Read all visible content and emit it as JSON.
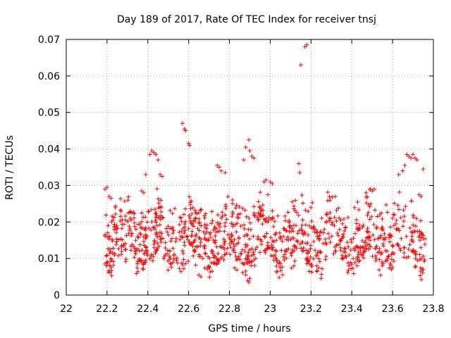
{
  "chart_data": {
    "type": "scatter",
    "title": "Day 189 of 2017, Rate Of TEC Index for receiver tnsj",
    "xlabel": "GPS time / hours",
    "ylabel": "ROTI / TECUs",
    "xlim": [
      22,
      23.8
    ],
    "ylim": [
      0,
      0.07
    ],
    "xticks": [
      22,
      22.2,
      22.4,
      22.6,
      22.8,
      23,
      23.2,
      23.4,
      23.6,
      23.8
    ],
    "xtick_labels": [
      "22",
      "22.2",
      "22.4",
      "22.6",
      "22.8",
      "23",
      "23.2",
      "23.4",
      "23.6",
      "23.8"
    ],
    "yticks": [
      0,
      0.01,
      0.02,
      0.03,
      0.04,
      0.05,
      0.06,
      0.07
    ],
    "ytick_labels": [
      "0",
      "0.01",
      "0.02",
      "0.03",
      "0.04",
      "0.05",
      "0.06",
      "0.07"
    ],
    "grid": true,
    "marker": "plus",
    "color": "#ff0000",
    "series": [
      {
        "name": "ROTI",
        "x_range": [
          22.19,
          23.76
        ],
        "points": [
          [
            22.19,
            0.029
          ],
          [
            22.2,
            0.0295
          ],
          [
            22.21,
            0.027
          ],
          [
            22.22,
            0.0265
          ],
          [
            22.57,
            0.047
          ],
          [
            22.58,
            0.0455
          ],
          [
            22.585,
            0.045
          ],
          [
            22.6,
            0.0415
          ],
          [
            22.605,
            0.041
          ],
          [
            22.41,
            0.0385
          ],
          [
            22.42,
            0.0395
          ],
          [
            22.43,
            0.039
          ],
          [
            22.44,
            0.0385
          ],
          [
            22.45,
            0.037
          ],
          [
            22.88,
            0.0405
          ],
          [
            22.895,
            0.0425
          ],
          [
            22.9,
            0.0395
          ],
          [
            22.91,
            0.038
          ],
          [
            22.92,
            0.0375
          ],
          [
            22.87,
            0.037
          ],
          [
            23.15,
            0.063
          ],
          [
            23.17,
            0.068
          ],
          [
            23.18,
            0.0685
          ],
          [
            23.14,
            0.036
          ],
          [
            23.145,
            0.0335
          ],
          [
            23.67,
            0.0385
          ],
          [
            23.68,
            0.038
          ],
          [
            23.69,
            0.0375
          ],
          [
            23.7,
            0.0385
          ],
          [
            23.71,
            0.0375
          ],
          [
            23.72,
            0.037
          ],
          [
            23.65,
            0.034
          ],
          [
            23.66,
            0.0355
          ],
          [
            23.63,
            0.033
          ],
          [
            23.75,
            0.0345
          ],
          [
            23.74,
            0.027
          ],
          [
            23.73,
            0.0275
          ],
          [
            22.74,
            0.0355
          ],
          [
            22.75,
            0.035
          ],
          [
            22.76,
            0.034
          ],
          [
            22.78,
            0.0335
          ],
          [
            22.97,
            0.031
          ],
          [
            22.98,
            0.0315
          ],
          [
            23.0,
            0.031
          ],
          [
            23.01,
            0.0305
          ],
          [
            22.89,
            0.004
          ],
          [
            22.895,
            0.0035
          ],
          [
            22.9,
            0.0045
          ],
          [
            22.88,
            0.0055
          ],
          [
            22.65,
            0.0055
          ],
          [
            22.66,
            0.005
          ],
          [
            23.75,
            0.007
          ],
          [
            22.19,
            0.0085
          ],
          [
            23.47,
            0.028
          ],
          [
            23.49,
            0.029
          ],
          [
            23.5,
            0.0285
          ],
          [
            23.51,
            0.029
          ],
          [
            22.37,
            0.0285
          ],
          [
            22.38,
            0.028
          ],
          [
            22.39,
            0.033
          ],
          [
            22.46,
            0.033
          ],
          [
            22.47,
            0.0325
          ]
        ],
        "bands": [
          {
            "center": 0.012,
            "spread": 0.0065,
            "count": 620
          },
          {
            "center": 0.019,
            "spread": 0.005,
            "count": 380
          },
          {
            "center": 0.024,
            "spread": 0.0035,
            "count": 110
          }
        ]
      }
    ]
  }
}
